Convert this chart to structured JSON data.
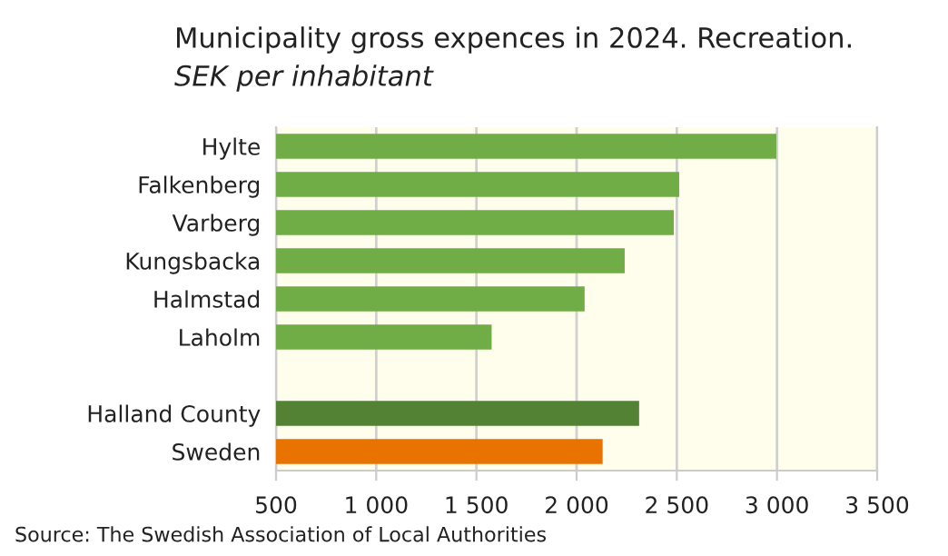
{
  "chart_data": {
    "type": "bar",
    "orientation": "horizontal",
    "title": "Municipality gross expences in 2024. Recreation.",
    "subtitle": "SEK per inhabitant",
    "categories": [
      "Hylte",
      "Falkenberg",
      "Varberg",
      "Kungsbacka",
      "Halmstad",
      "Laholm",
      null,
      "Halland County",
      "Sweden"
    ],
    "values": [
      2997,
      2512,
      2485,
      2240,
      2040,
      1576,
      null,
      2312,
      2130
    ],
    "colors": [
      "#70ad47",
      "#70ad47",
      "#70ad47",
      "#70ad47",
      "#70ad47",
      "#70ad47",
      "#70ad47",
      "#548235",
      "#e97300"
    ],
    "xlim": [
      500,
      3500
    ],
    "xticks": [
      500,
      {
        "value": 1000,
        "label": "1 000"
      },
      {
        "value": 1500,
        "label": "1 500"
      },
      {
        "value": 2000,
        "label": "2 000"
      },
      {
        "value": 2500,
        "label": "2 500"
      },
      {
        "value": 3000,
        "label": "3 000"
      },
      {
        "value": 3500,
        "label": "3 500"
      }
    ],
    "grid": "x",
    "annotations": [
      "Source: The Swedish Association of Local Authorities"
    ]
  }
}
